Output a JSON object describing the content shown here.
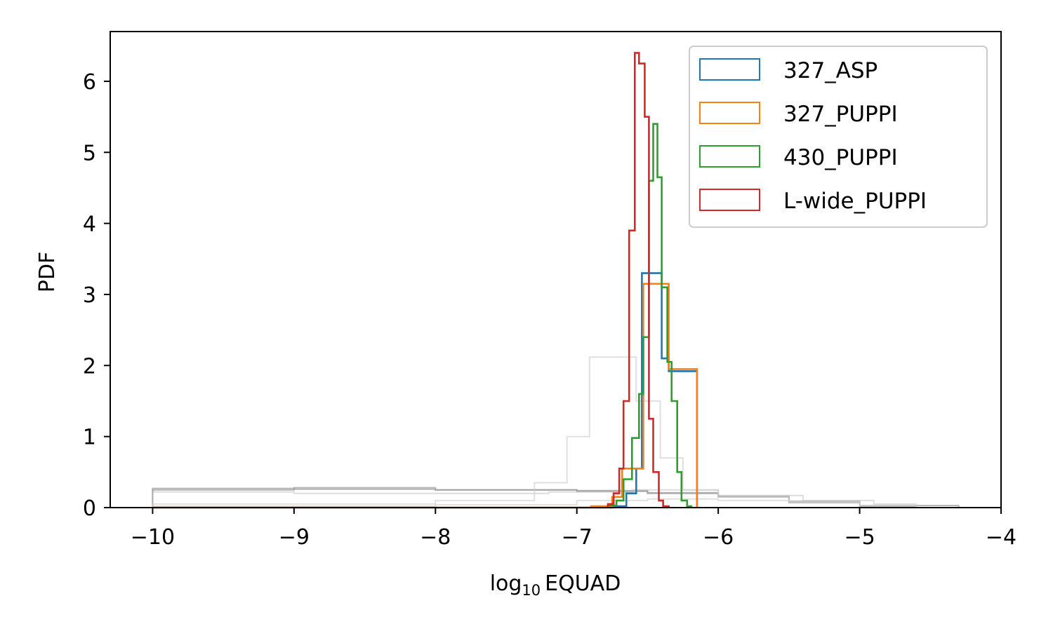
{
  "chart_data": {
    "type": "step-histogram",
    "title": "",
    "xlabel": "log",
    "xlabel_subscript": "10",
    "xlabel_suffix": "EQUAD",
    "ylabel": "PDF",
    "xlim": [
      -10.3,
      -4.0
    ],
    "ylim": [
      0,
      6.7
    ],
    "xticks": [
      -10,
      -9,
      -8,
      -7,
      -6,
      -5,
      -4
    ],
    "xtick_labels": [
      "−10",
      "−9",
      "−8",
      "−7",
      "−6",
      "−5",
      "−4"
    ],
    "yticks": [
      0,
      1,
      2,
      3,
      4,
      5,
      6
    ],
    "ytick_labels": [
      "0",
      "1",
      "2",
      "3",
      "4",
      "5",
      "6"
    ],
    "legend_position": "upper right",
    "grid": false,
    "series": [
      {
        "name": "327_ASP",
        "color": "#1f77b4",
        "edges": [
          -10.0,
          -6.95,
          -6.75,
          -6.65,
          -6.58,
          -6.54,
          -6.4,
          -6.35,
          -6.28,
          -6.21,
          -6.15
        ],
        "values": [
          0.0,
          0.0,
          0.02,
          0.2,
          0.55,
          3.3,
          2.1,
          1.92,
          1.92,
          1.92
        ]
      },
      {
        "name": "327_PUPPI",
        "color": "#ff7f0e",
        "edges": [
          -10.0,
          -6.9,
          -6.75,
          -6.68,
          -6.58,
          -6.53,
          -6.35,
          -6.28,
          -6.15
        ],
        "values": [
          0.0,
          0.02,
          0.15,
          0.55,
          0.55,
          3.15,
          1.95,
          1.95
        ]
      },
      {
        "name": "430_PUPPI",
        "color": "#2ca02c",
        "edges": [
          -6.78,
          -6.72,
          -6.67,
          -6.61,
          -6.56,
          -6.53,
          -6.49,
          -6.46,
          -6.43,
          -6.4,
          -6.36,
          -6.33,
          -6.29,
          -6.26,
          -6.22,
          -6.19
        ],
        "values": [
          0.03,
          0.1,
          0.4,
          0.98,
          1.6,
          2.4,
          4.6,
          5.4,
          4.65,
          3.1,
          2.05,
          1.5,
          0.5,
          0.1,
          0.02
        ]
      },
      {
        "name": "L-wide_PUPPI",
        "color": "#d62728",
        "edges": [
          -6.78,
          -6.74,
          -6.7,
          -6.67,
          -6.63,
          -6.59,
          -6.56,
          -6.52,
          -6.49,
          -6.46,
          -6.42,
          -6.39,
          -6.35
        ],
        "values": [
          0.05,
          0.2,
          0.55,
          1.5,
          3.9,
          6.4,
          6.25,
          5.5,
          1.25,
          0.5,
          0.1,
          0.02
        ]
      }
    ],
    "background_series": [
      {
        "color": "#999999",
        "opacity": 0.7,
        "edges": [
          -10.0,
          -9.0,
          -8.0,
          -7.0,
          -6.5,
          -6.0,
          -5.5,
          -5.0,
          -4.6
        ],
        "values": [
          0.27,
          0.26,
          0.25,
          0.23,
          0.2,
          0.15,
          0.07,
          0.02
        ]
      },
      {
        "color": "#999999",
        "opacity": 0.7,
        "edges": [
          -10.0,
          -9.0,
          -8.0,
          -7.0,
          -6.5,
          -6.0,
          -5.5,
          -5.0,
          -4.3
        ],
        "values": [
          0.25,
          0.28,
          0.25,
          0.24,
          0.21,
          0.16,
          0.09,
          0.03
        ]
      },
      {
        "color": "#bbbbbb",
        "opacity": 0.5,
        "edges": [
          -10.0,
          -9.0,
          -8.0,
          -7.2,
          -6.6,
          -6.0,
          -5.4,
          -4.9,
          -4.6
        ],
        "values": [
          0.22,
          0.2,
          0.2,
          0.22,
          0.25,
          0.17,
          0.1,
          0.05
        ]
      },
      {
        "color": "#cccccc",
        "opacity": 0.6,
        "edges": [
          -10.0,
          -8.0,
          -7.3,
          -7.07,
          -6.91,
          -6.74,
          -6.58,
          -6.41,
          -6.25,
          -6.0,
          -5.5,
          -5.0,
          -4.6
        ],
        "values": [
          0.05,
          0.1,
          0.35,
          1.0,
          2.12,
          2.12,
          1.5,
          0.7,
          0.25,
          0.15,
          0.08,
          0.03
        ]
      },
      {
        "color": "#cccccc",
        "opacity": 0.6,
        "edges": [
          -10.0,
          -8.0,
          -7.0,
          -6.5,
          -6.0,
          -5.5,
          -5.0,
          -4.6
        ],
        "values": [
          0.02,
          0.04,
          0.1,
          0.12,
          0.1,
          0.08,
          0.03
        ]
      }
    ]
  }
}
